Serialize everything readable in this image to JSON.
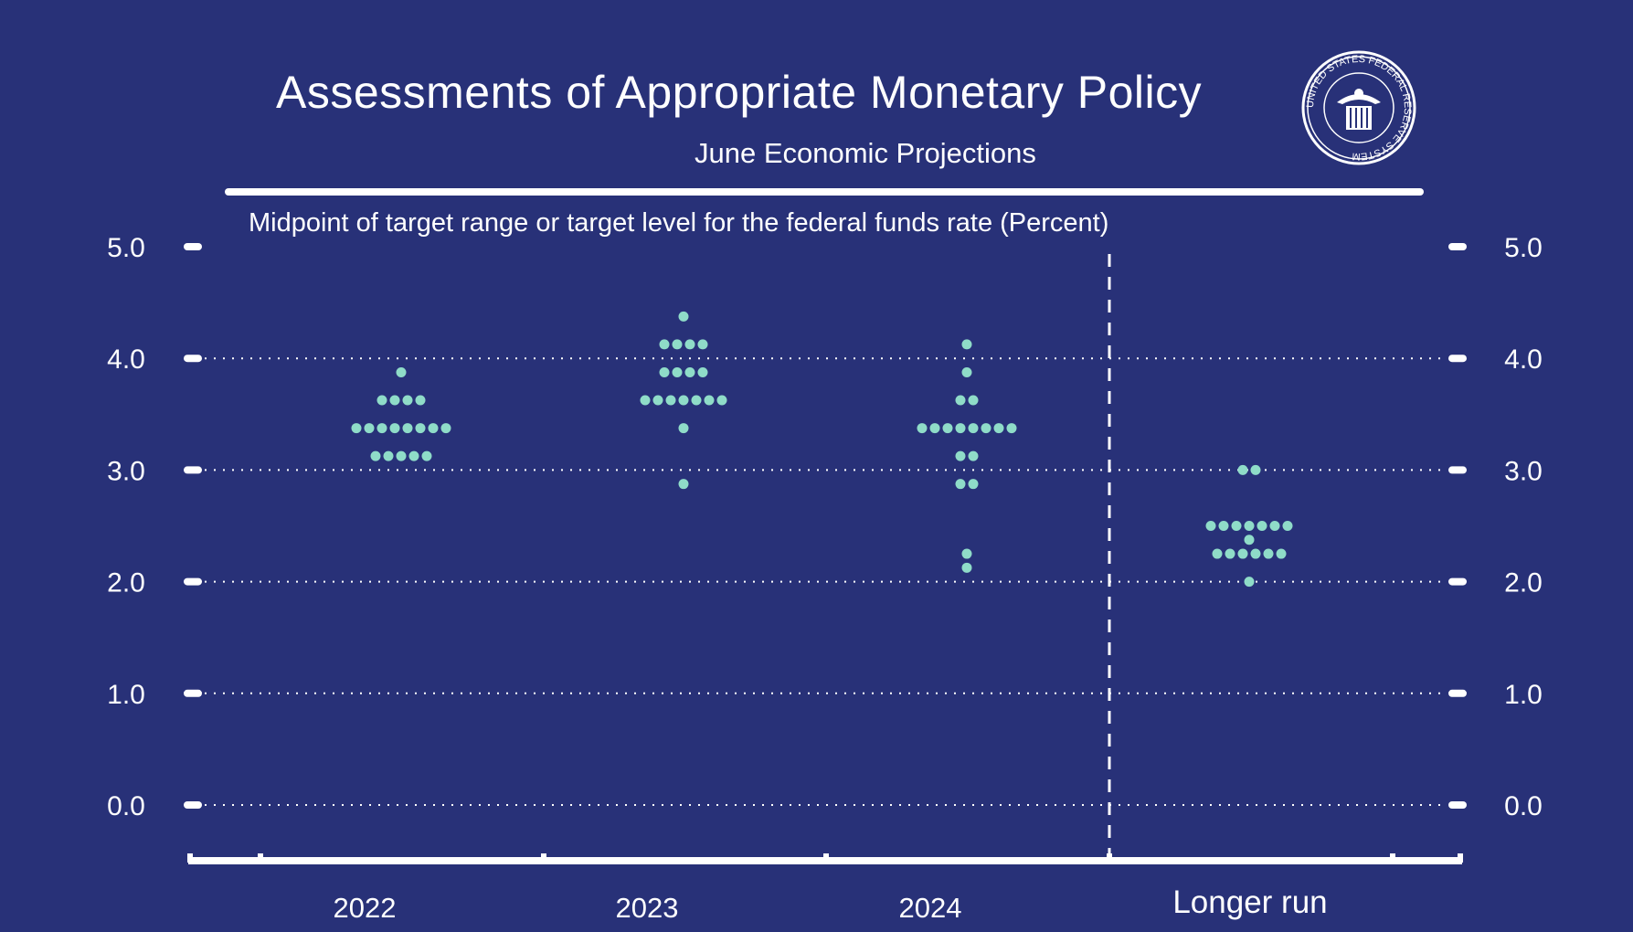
{
  "title": "Assessments of Appropriate Monetary Policy",
  "subtitle": "June Economic Projections",
  "seal_text": "UNITED STATES FEDERAL RESERVE SYSTEM",
  "chart_data": {
    "type": "scatter",
    "title": "Assessments of Appropriate Monetary Policy",
    "subtitle": "June Economic Projections",
    "ylabel": "Midpoint of target range or target level for the federal funds rate (Percent)",
    "categories": [
      "2022",
      "2023",
      "2024",
      "Longer run"
    ],
    "ylim": [
      0,
      5
    ],
    "yticks": [
      "5.0",
      "4.0",
      "3.0",
      "2.0",
      "1.0",
      "0.0"
    ],
    "grid": true,
    "dot_color": "#8fdcc8",
    "background": "#283178",
    "series": [
      {
        "category": "2022",
        "points": [
          {
            "y": 3.875,
            "count": 1
          },
          {
            "y": 3.625,
            "count": 4
          },
          {
            "y": 3.375,
            "count": 8
          },
          {
            "y": 3.125,
            "count": 5
          }
        ]
      },
      {
        "category": "2023",
        "points": [
          {
            "y": 4.375,
            "count": 1
          },
          {
            "y": 4.125,
            "count": 4
          },
          {
            "y": 3.875,
            "count": 4
          },
          {
            "y": 3.625,
            "count": 7
          },
          {
            "y": 3.375,
            "count": 1
          },
          {
            "y": 2.875,
            "count": 1
          }
        ]
      },
      {
        "category": "2024",
        "points": [
          {
            "y": 4.125,
            "count": 1
          },
          {
            "y": 3.875,
            "count": 1
          },
          {
            "y": 3.625,
            "count": 2
          },
          {
            "y": 3.375,
            "count": 8
          },
          {
            "y": 3.125,
            "count": 2
          },
          {
            "y": 2.875,
            "count": 2
          },
          {
            "y": 2.25,
            "count": 1
          },
          {
            "y": 2.125,
            "count": 1
          }
        ]
      },
      {
        "category": "Longer run",
        "points": [
          {
            "y": 3.0,
            "count": 2
          },
          {
            "y": 2.5,
            "count": 7
          },
          {
            "y": 2.375,
            "count": 1
          },
          {
            "y": 2.25,
            "count": 6
          },
          {
            "y": 2.0,
            "count": 1
          }
        ]
      }
    ]
  }
}
